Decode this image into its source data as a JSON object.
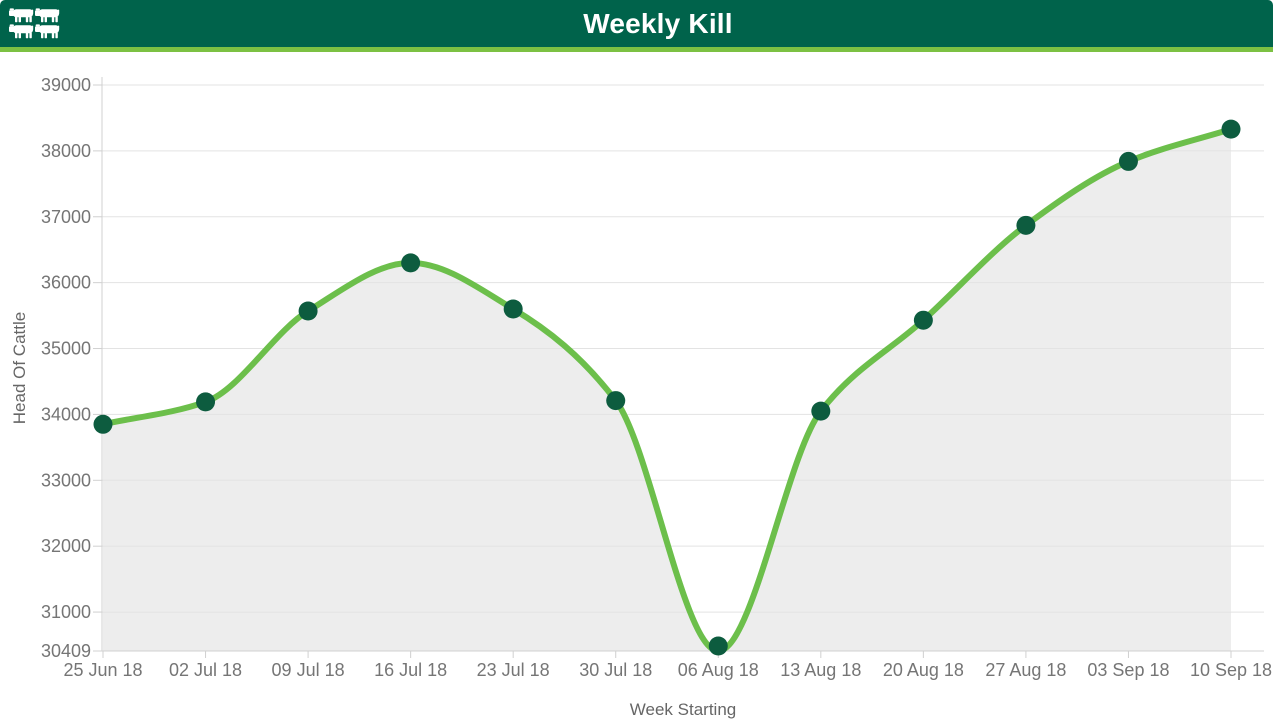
{
  "header": {
    "title": "Weekly Kill",
    "logo": "cattle-icons"
  },
  "chart_data": {
    "type": "area",
    "title": "Weekly Kill",
    "xlabel": "Week Starting",
    "ylabel": "Head Of Cattle",
    "categories": [
      "25 Jun 18",
      "02 Jul 18",
      "09 Jul 18",
      "16 Jul 18",
      "23 Jul 18",
      "30 Jul 18",
      "06 Aug 18",
      "13 Aug 18",
      "20 Aug 18",
      "27 Aug 18",
      "03 Sep 18",
      "10 Sep 18"
    ],
    "values": [
      33850,
      34190,
      35570,
      36300,
      35600,
      34210,
      30409,
      34050,
      35430,
      36870,
      37840,
      38330
    ],
    "ylim": [
      30409,
      39000
    ],
    "yticks": [
      30409,
      31000,
      32000,
      33000,
      34000,
      35000,
      36000,
      37000,
      38000,
      39000
    ],
    "grid": true,
    "legend": false,
    "smooth": true,
    "colors": {
      "header_bg": "#00634B",
      "header_accent": "#7CC143",
      "line": "#6CBF4B",
      "marker": "#0D5C3F",
      "area_fill": "#EDEDED",
      "gridline": "#E3E3E3",
      "axis_line": "#D0D0D0",
      "tick_text": "#757575",
      "axis_title_text": "#666666"
    }
  }
}
